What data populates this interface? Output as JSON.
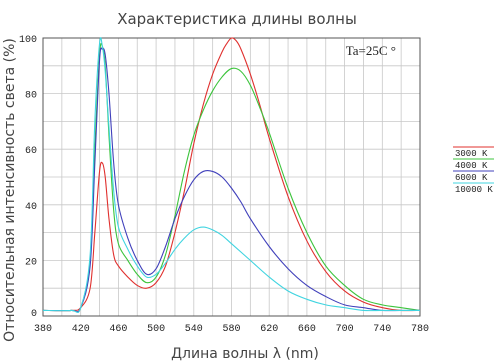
{
  "chart_data": {
    "type": "line",
    "title": "Характеристика длины волны",
    "xlabel": "Длина волны λ (nm)",
    "ylabel": "Относительная интенсивность света (%)",
    "xlim": [
      380,
      780
    ],
    "ylim": [
      0,
      100
    ],
    "xticks": [
      380,
      420,
      460,
      500,
      540,
      580,
      620,
      660,
      700,
      740,
      780
    ],
    "yticks": [
      0,
      20,
      40,
      60,
      80,
      100
    ],
    "grid": true,
    "legend_position": "right",
    "annotation": "Ta=25C °",
    "series": [
      {
        "name": "3000 K",
        "color": "#e0302e",
        "x": [
          380,
          410,
          420,
          430,
          435,
          440,
          443,
          446,
          450,
          455,
          460,
          470,
          480,
          490,
          500,
          510,
          520,
          530,
          540,
          550,
          560,
          570,
          575,
          580,
          585,
          590,
          600,
          610,
          620,
          640,
          660,
          680,
          700,
          720,
          740,
          760,
          780
        ],
        "y": [
          2,
          2,
          3,
          10,
          30,
          52,
          55,
          50,
          35,
          22,
          18,
          14,
          11,
          10,
          12,
          18,
          30,
          45,
          62,
          76,
          87,
          95,
          98,
          100,
          99,
          96,
          87,
          76,
          64,
          43,
          27,
          16,
          9,
          5,
          3,
          2,
          2
        ]
      },
      {
        "name": "4000 K",
        "color": "#3cc43c",
        "x": [
          380,
          410,
          420,
          430,
          435,
          440,
          443,
          446,
          450,
          455,
          460,
          470,
          480,
          490,
          500,
          510,
          520,
          530,
          540,
          550,
          560,
          570,
          580,
          590,
          600,
          610,
          620,
          640,
          660,
          680,
          700,
          720,
          740,
          760,
          780
        ],
        "y": [
          2,
          2,
          3,
          20,
          60,
          94,
          97,
          90,
          65,
          38,
          26,
          20,
          15,
          12,
          14,
          22,
          36,
          52,
          65,
          74,
          81,
          86,
          89,
          88,
          83,
          75,
          66,
          46,
          30,
          18,
          11,
          6,
          4,
          3,
          2
        ]
      },
      {
        "name": "6000 K",
        "color": "#4040bb",
        "x": [
          380,
          410,
          420,
          430,
          435,
          440,
          443,
          446,
          450,
          455,
          460,
          470,
          480,
          490,
          500,
          510,
          520,
          530,
          540,
          550,
          560,
          570,
          580,
          590,
          600,
          620,
          640,
          660,
          680,
          700,
          720,
          740,
          760,
          780
        ],
        "y": [
          2,
          2,
          3,
          18,
          55,
          92,
          96,
          94,
          80,
          55,
          40,
          28,
          20,
          15,
          17,
          25,
          35,
          43,
          49,
          52,
          52,
          50,
          46,
          41,
          35,
          25,
          17,
          11,
          7,
          4,
          3,
          2,
          2,
          2
        ]
      },
      {
        "name": "10000 K",
        "color": "#40d4e0",
        "x": [
          380,
          410,
          420,
          430,
          435,
          440,
          443,
          446,
          450,
          455,
          460,
          470,
          480,
          490,
          500,
          510,
          520,
          530,
          540,
          550,
          560,
          570,
          580,
          600,
          620,
          640,
          660,
          680,
          700,
          720,
          740,
          760,
          780
        ],
        "y": [
          2,
          2,
          3,
          22,
          70,
          98,
          97,
          88,
          68,
          45,
          32,
          24,
          18,
          14,
          15,
          19,
          24,
          28,
          31,
          32,
          31,
          29,
          26,
          20,
          14,
          9,
          6,
          4,
          3,
          2,
          2,
          2,
          2
        ]
      }
    ]
  }
}
